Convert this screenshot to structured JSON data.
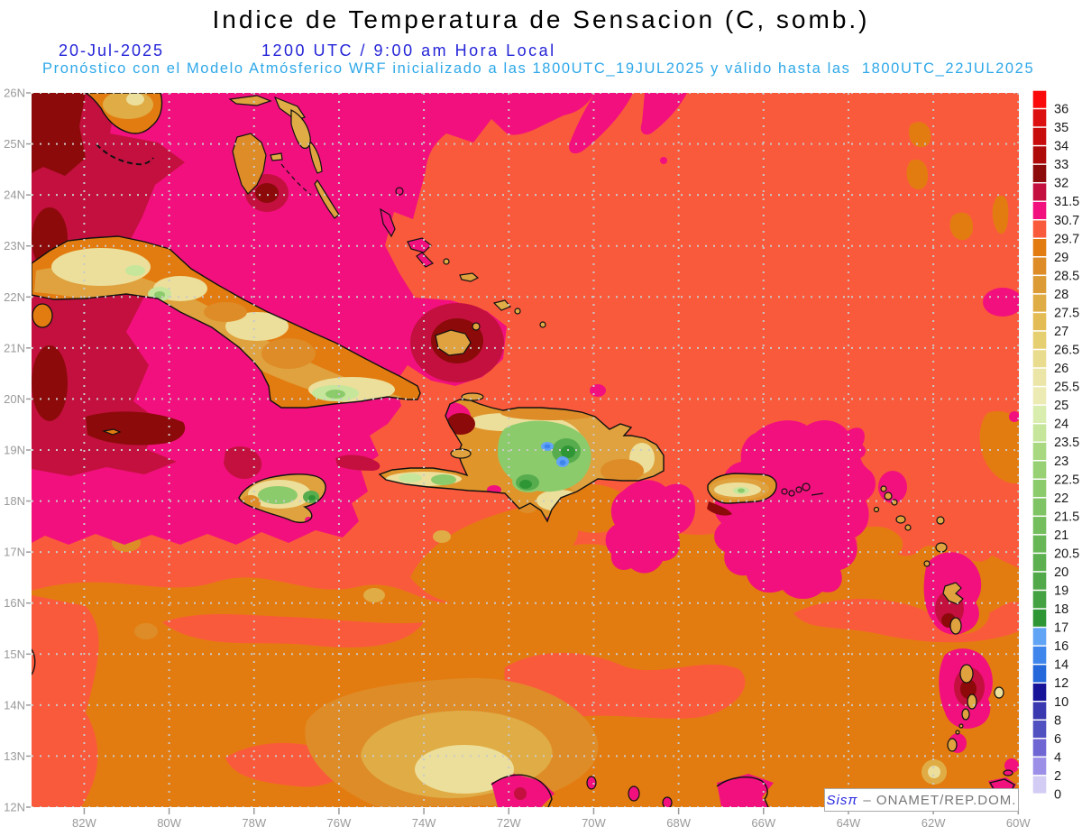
{
  "title": "Indice de Temperatura de Sensacion (C, somb.)",
  "subtitle": {
    "date": "20-Jul-2025",
    "time": "1200 UTC / 9:00 am Hora Local"
  },
  "forecast_line": "Pronóstico con el Modelo Atmósferico WRF inicializado a las 1800UTC_19JUL2025 y válido hasta las  1800UTC_22JUL2025",
  "attribution": {
    "system": "Sisπ",
    "org": "– ONAMET/REP.DOM."
  },
  "axes": {
    "lat_ticks": [
      "26N",
      "25N",
      "24N",
      "23N",
      "22N",
      "21N",
      "20N",
      "19N",
      "18N",
      "17N",
      "16N",
      "15N",
      "14N",
      "13N",
      "12N"
    ],
    "lon_ticks": [
      "82W",
      "80W",
      "78W",
      "76W",
      "74W",
      "72W",
      "70W",
      "68W",
      "66W",
      "64W",
      "62W",
      "60W"
    ]
  },
  "colorbar": {
    "labels": [
      "36",
      "35",
      "34",
      "33",
      "32",
      "31.5",
      "30.7",
      "29.7",
      "29",
      "28.5",
      "28",
      "27.5",
      "27",
      "26.5",
      "26",
      "25.5",
      "25",
      "24",
      "23.5",
      "23",
      "22.5",
      "22",
      "21.5",
      "21",
      "20.5",
      "20",
      "19",
      "18",
      "17",
      "16",
      "14",
      "12",
      "10",
      "8",
      "6",
      "4",
      "2",
      "0"
    ],
    "colors": [
      "#fa0a0a",
      "#dc1010",
      "#c80c0c",
      "#af0a0a",
      "#8c0a0a",
      "#c3103f",
      "#f2107e",
      "#fa5a3c",
      "#e37c10",
      "#de8c28",
      "#dc9b35",
      "#e0ac45",
      "#e3bc55",
      "#e6cf70",
      "#eadc8f",
      "#ece5a8",
      "#edebb4",
      "#d9edaf",
      "#c6e69b",
      "#a8d981",
      "#97d173",
      "#8ccb6c",
      "#7fc464",
      "#74be5d",
      "#68b756",
      "#5db050",
      "#51a94a",
      "#45a243",
      "#2f9636",
      "#61a3f5",
      "#3e86ec",
      "#2468db",
      "#171499",
      "#3a39af",
      "#5150c0",
      "#6f66d4",
      "#9c8fe8",
      "#d3ccf4",
      "#ffffff"
    ]
  },
  "colors": {
    "ocean_base": "#fa5a3c",
    "hot_band": "#f2107e",
    "very_hot": "#c3103f",
    "extreme": "#8c0a0a",
    "warm_orange": "#e37c10",
    "title_text": "#000000",
    "date_text": "#2424d8",
    "forecast_text": "#2ea8e8",
    "axis_text": "#9a9a9a",
    "grid": "#c9c9c9"
  }
}
